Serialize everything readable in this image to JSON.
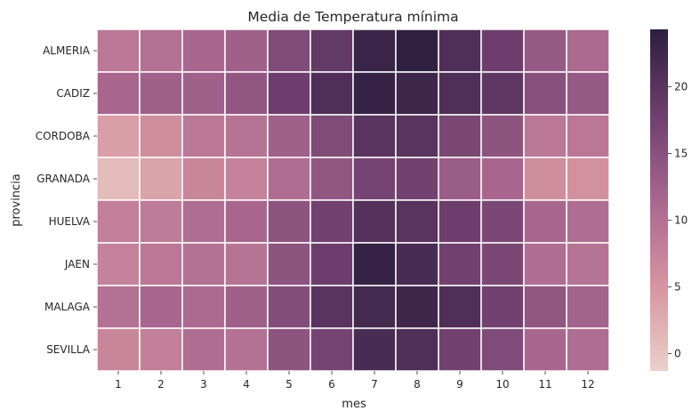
{
  "chart_data": {
    "type": "heatmap",
    "title": "Media de Temperatura mínima",
    "xlabel": "mes",
    "ylabel": "provincia",
    "x_categories": [
      "1",
      "2",
      "3",
      "4",
      "5",
      "6",
      "7",
      "8",
      "9",
      "10",
      "11",
      "12"
    ],
    "y_categories": [
      "ALMERIA",
      "CADIZ",
      "CORDOBA",
      "GRANADA",
      "HUELVA",
      "JAEN",
      "MALAGA",
      "SEVILLA"
    ],
    "values": [
      [
        9.0,
        10.0,
        11.5,
        12.5,
        16.0,
        19.0,
        23.0,
        24.0,
        21.0,
        18.0,
        13.5,
        11.0
      ],
      [
        11.5,
        12.5,
        12.5,
        14.0,
        18.0,
        21.0,
        23.5,
        22.5,
        21.0,
        19.5,
        15.0,
        13.5
      ],
      [
        4.0,
        6.0,
        9.0,
        9.5,
        12.5,
        16.0,
        20.0,
        20.0,
        16.5,
        14.5,
        9.0,
        9.0
      ],
      [
        1.0,
        3.5,
        7.0,
        7.5,
        10.5,
        14.0,
        17.0,
        17.5,
        13.0,
        11.5,
        6.0,
        5.5
      ],
      [
        8.0,
        8.5,
        10.5,
        11.5,
        14.5,
        17.5,
        20.5,
        20.0,
        18.0,
        16.5,
        11.5,
        10.5
      ],
      [
        7.5,
        9.0,
        10.0,
        9.5,
        14.5,
        18.0,
        23.5,
        21.5,
        17.5,
        16.5,
        10.5,
        9.5
      ],
      [
        10.0,
        11.5,
        11.0,
        12.5,
        15.5,
        20.0,
        22.0,
        22.5,
        21.0,
        17.5,
        14.0,
        12.0
      ],
      [
        7.0,
        8.0,
        10.5,
        10.0,
        14.5,
        17.0,
        21.5,
        21.0,
        17.5,
        16.0,
        11.5,
        10.5
      ]
    ],
    "vmin": -1.3,
    "vmax": 24.3,
    "colorbar_ticks": [
      0,
      5,
      10,
      15,
      20
    ],
    "colormap": [
      "#ebd1c9",
      "#2d1e3e"
    ],
    "cell_border_color": "#ffffff",
    "grid": false,
    "legend": "colorbar-right"
  }
}
